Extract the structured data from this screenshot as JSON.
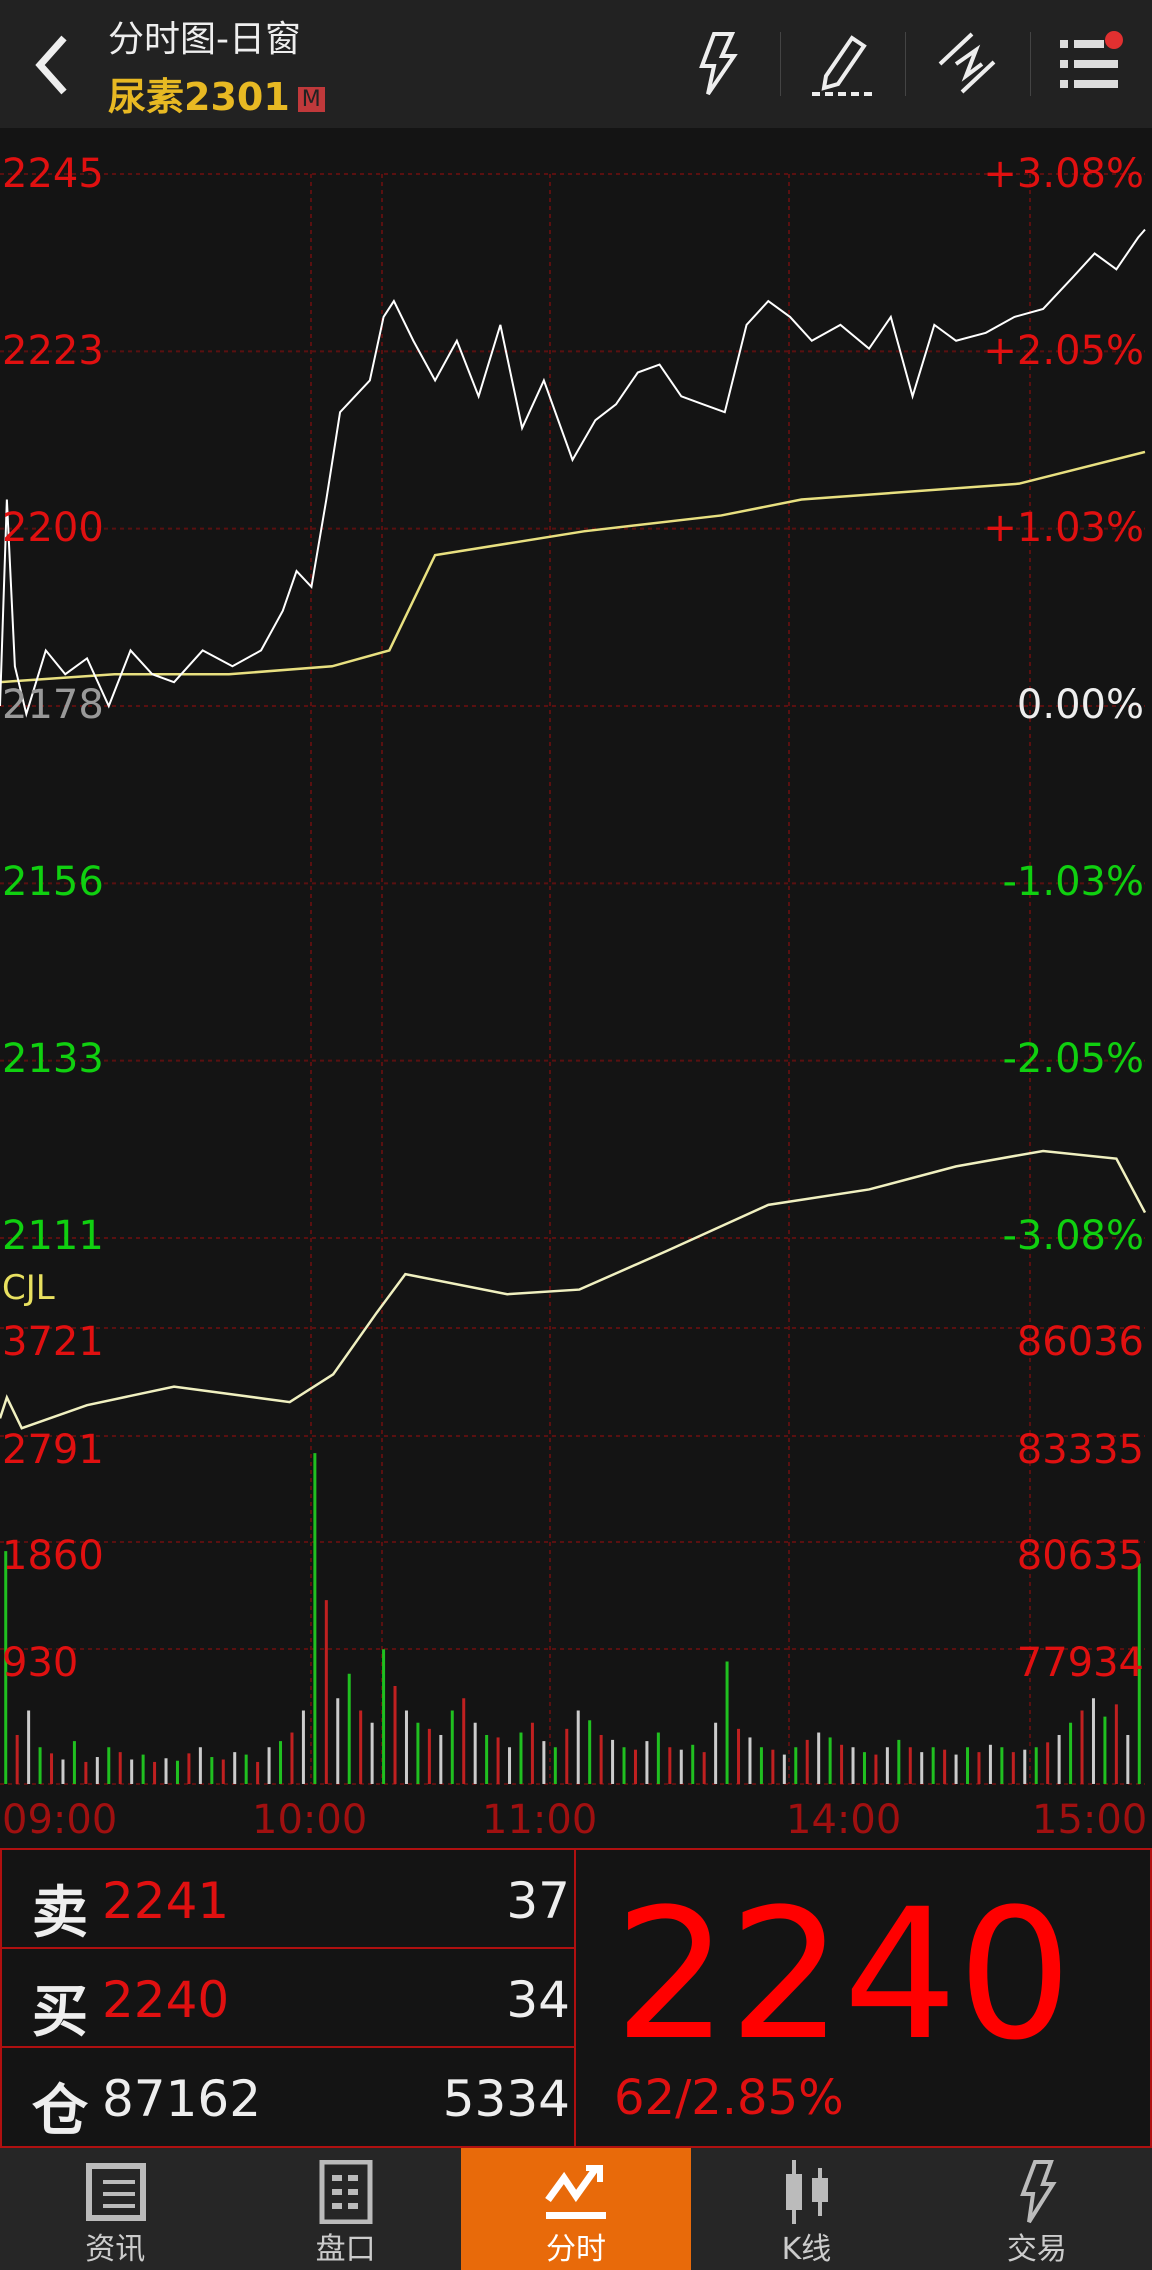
{
  "header": {
    "title": "分时图-日窗",
    "symbol": "尿素2301",
    "badge": "M",
    "icons": [
      "back-icon",
      "flash-icon",
      "pencil-icon",
      "draw-line-icon",
      "menu-list-icon"
    ]
  },
  "chart_data": {
    "type": "line",
    "price_axis_left": [
      "2245",
      "2223",
      "2200",
      "2178",
      "2156",
      "2133",
      "2111"
    ],
    "price_axis_right": [
      "+3.08%",
      "+2.05%",
      "+1.03%",
      "0.00%",
      "-1.03%",
      "-2.05%",
      "-3.08%"
    ],
    "ylim": [
      2111,
      2245
    ],
    "x_ticks": [
      "09:00",
      "10:00",
      "11:00",
      "14:00",
      "15:00"
    ],
    "price_x": [
      0,
      0.6,
      1.3,
      2.3,
      4,
      5.7,
      7.6,
      9.5,
      11.4,
      13.3,
      15.2,
      17.7,
      20.3,
      22.8,
      24.7,
      25.9,
      27.2,
      28.5,
      29.7,
      31,
      32.3,
      33.5,
      34.4,
      36.1,
      38,
      39.9,
      41.8,
      43.7,
      45.6,
      47.5,
      50,
      52,
      53.8,
      55.7,
      57.6,
      59.5,
      61.4,
      63.3,
      65.2,
      67.1,
      69,
      70.9,
      73.4,
      75.9,
      77.8,
      79.7,
      81.6,
      83.5,
      86.1,
      88.6,
      91.1,
      93.7,
      95.6,
      97.5,
      99.4,
      100
    ],
    "price": [
      2178,
      2204,
      2183,
      2177,
      2185,
      2182,
      2184,
      2178,
      2185,
      2182,
      2181,
      2185,
      2183,
      2185,
      2190,
      2195,
      2193,
      2204,
      2215,
      2217,
      2219,
      2227,
      2229,
      2224,
      2219,
      2224,
      2217,
      2226,
      2213,
      2219,
      2209,
      2214,
      2216,
      2220,
      2221,
      2217,
      2216,
      2215,
      2226,
      2229,
      2227,
      2224,
      2226,
      2223,
      2227,
      2217,
      2226,
      2224,
      2225,
      2227,
      2228,
      2232,
      2235,
      2233,
      2237,
      2238
    ],
    "avg_x": [
      0,
      10,
      20,
      29,
      34,
      38,
      51,
      63,
      70,
      89,
      100
    ],
    "avg": [
      2181,
      2182,
      2182,
      2183,
      2185,
      2197,
      2200,
      2202,
      2204,
      2206,
      2210
    ],
    "volume_label": "CJL",
    "volume_axis_left": [
      "3721",
      "2791",
      "1860",
      "930"
    ],
    "oi_axis_right": [
      "86036",
      "83335",
      "80635",
      "77934"
    ],
    "volume_max": 3721,
    "oi_ylim": [
      75233,
      86036
    ],
    "oi_x": [
      0,
      0.6,
      1.9,
      7.6,
      15.2,
      25.3,
      29.1,
      32.9,
      35.4,
      44.3,
      50.6,
      58.2,
      67.1,
      75.9,
      83.5,
      91.1,
      97.5,
      100
    ],
    "oi": [
      82000,
      82496,
      81766,
      82313,
      82751,
      82386,
      83043,
      84503,
      85416,
      84941,
      85051,
      85963,
      87058,
      87423,
      87970,
      88335,
      88153,
      86875
    ],
    "volume": [
      1900,
      400,
      600,
      300,
      250,
      200,
      350,
      180,
      220,
      300,
      260,
      200,
      240,
      180,
      210,
      190,
      250,
      300,
      220,
      200,
      260,
      240,
      180,
      300,
      350,
      420,
      600,
      2700,
      1500,
      700,
      900,
      600,
      500,
      1100,
      800,
      600,
      500,
      450,
      400,
      600,
      700,
      500,
      400,
      380,
      300,
      420,
      500,
      350,
      300,
      450,
      600,
      520,
      400,
      360,
      300,
      280,
      350,
      420,
      300,
      280,
      320,
      260,
      500,
      1000,
      450,
      380,
      300,
      280,
      240,
      300,
      360,
      420,
      380,
      320,
      300,
      260,
      240,
      300,
      360,
      300,
      260,
      300,
      280,
      240,
      300,
      260,
      320,
      300,
      260,
      280,
      300,
      340,
      400,
      500,
      600,
      700,
      550,
      650,
      400,
      1800
    ]
  },
  "quote": {
    "sell_label": "卖",
    "sell_price": "2241",
    "sell_qty": "37",
    "buy_label": "买",
    "buy_price": "2240",
    "buy_qty": "34",
    "oi_label": "仓",
    "oi_value": "87162",
    "oi_change": "5334",
    "last": "2240",
    "change": "62/2.85%"
  },
  "colors": {
    "up": "#e01010",
    "down": "#10d010",
    "accent": "#e86a0a",
    "symbol": "#e8b923",
    "avg_line": "#e8e080"
  },
  "nav": [
    {
      "label": "资讯",
      "icon": "news-icon"
    },
    {
      "label": "盘口",
      "icon": "order-book-icon"
    },
    {
      "label": "分时",
      "icon": "intraday-icon",
      "active": true
    },
    {
      "label": "K线",
      "icon": "candlestick-icon"
    },
    {
      "label": "交易",
      "icon": "trade-icon"
    }
  ]
}
